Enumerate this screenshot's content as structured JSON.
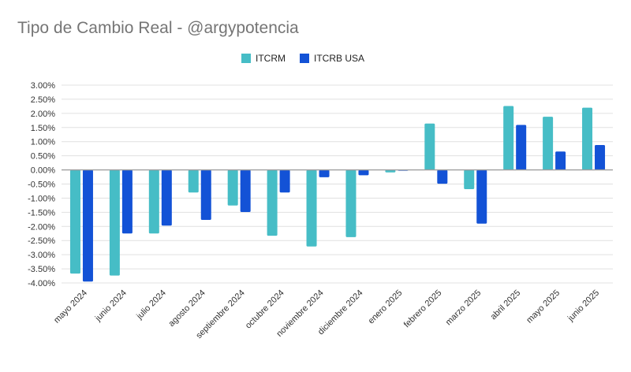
{
  "chart_data": {
    "type": "bar",
    "title": "Tipo de Cambio Real - @argypotencia",
    "xlabel": "",
    "ylabel": "",
    "ylim": [
      -4.0,
      3.0
    ],
    "yticks": [
      "3.00%",
      "2.50%",
      "2.00%",
      "1.50%",
      "1.00%",
      "0.50%",
      "0.00%",
      "-0.50%",
      "-1.00%",
      "-1.50%",
      "-2.00%",
      "-2.50%",
      "-3.00%",
      "-3.50%",
      "-4.00%"
    ],
    "legend_position": "top",
    "grid": true,
    "categories": [
      "mayo 2024",
      "junio 2024",
      "julio 2024",
      "agosto 2024",
      "septiembre 2024",
      "octubre 2024",
      "noviembre 2024",
      "diciembre 2024",
      "enero 2025",
      "febrero 2025",
      "marzo 2025",
      "abril 2025",
      "mayo 2025",
      "junio 2025"
    ],
    "series": [
      {
        "name": "ITCRM",
        "color": "#46bdc6",
        "values": [
          -3.67,
          -3.74,
          -2.25,
          -0.8,
          -1.26,
          -2.33,
          -2.71,
          -2.38,
          -0.09,
          1.64,
          -0.68,
          2.26,
          1.88,
          2.2
        ]
      },
      {
        "name": "ITCRB USA",
        "color": "#1352d6",
        "values": [
          -3.95,
          -2.25,
          -1.97,
          -1.77,
          -1.49,
          -0.8,
          -0.26,
          -0.19,
          -0.01,
          -0.49,
          -1.9,
          1.59,
          0.65,
          0.88
        ]
      }
    ]
  }
}
